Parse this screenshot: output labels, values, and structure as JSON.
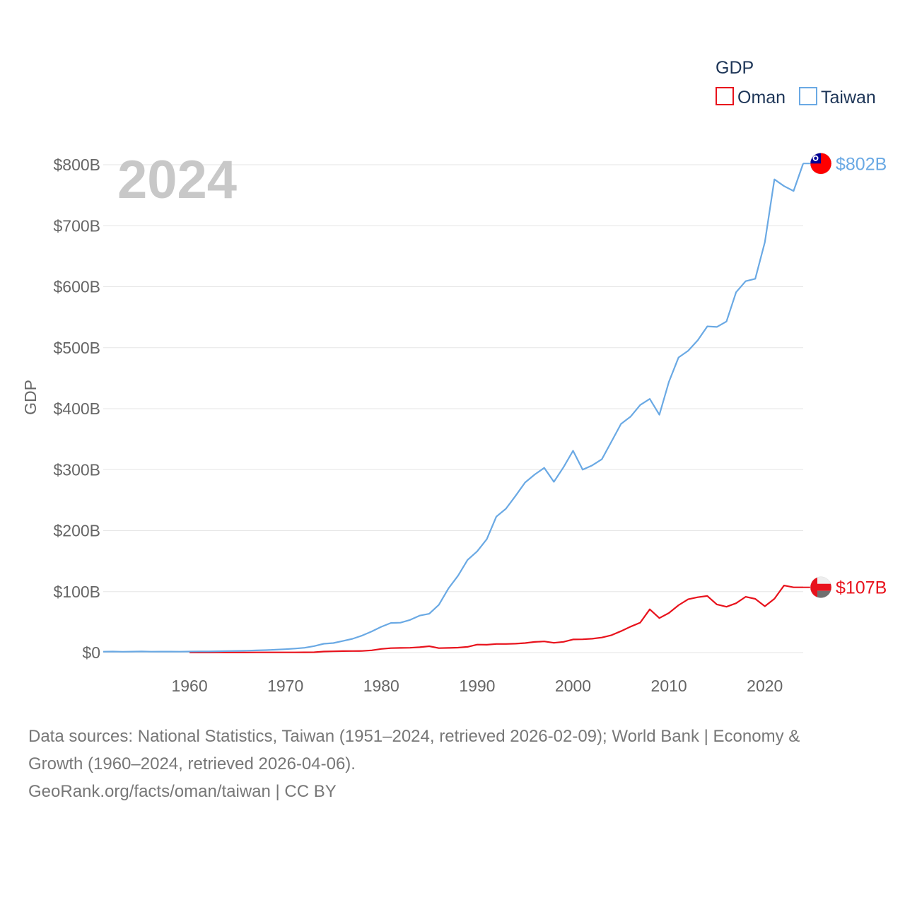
{
  "chart_data": {
    "type": "line",
    "title": "",
    "year_label": "2024",
    "ylabel": "GDP",
    "xlabel": "",
    "xlim": [
      1951,
      2024
    ],
    "ylim": [
      0,
      800
    ],
    "y_ticks": [
      {
        "value": 0,
        "label": "$0"
      },
      {
        "value": 100,
        "label": "$100B"
      },
      {
        "value": 200,
        "label": "$200B"
      },
      {
        "value": 300,
        "label": "$300B"
      },
      {
        "value": 400,
        "label": "$400B"
      },
      {
        "value": 500,
        "label": "$500B"
      },
      {
        "value": 600,
        "label": "$600B"
      },
      {
        "value": 700,
        "label": "$700B"
      },
      {
        "value": 800,
        "label": "$800B"
      }
    ],
    "x_ticks": [
      {
        "value": 1960,
        "label": "1960"
      },
      {
        "value": 1970,
        "label": "1970"
      },
      {
        "value": 1980,
        "label": "1980"
      },
      {
        "value": 1990,
        "label": "1990"
      },
      {
        "value": 2000,
        "label": "2000"
      },
      {
        "value": 2010,
        "label": "2010"
      },
      {
        "value": 2020,
        "label": "2020"
      }
    ],
    "legend": {
      "title": "GDP",
      "position": "top-right"
    },
    "series": [
      {
        "name": "Oman",
        "color": "#e8121c",
        "end_label": "$107B",
        "flag": "oman-flag",
        "x": [
          1960,
          1961,
          1962,
          1963,
          1964,
          1965,
          1966,
          1967,
          1968,
          1969,
          1970,
          1971,
          1972,
          1973,
          1974,
          1975,
          1976,
          1977,
          1978,
          1979,
          1980,
          1981,
          1982,
          1983,
          1984,
          1985,
          1986,
          1987,
          1988,
          1989,
          1990,
          1991,
          1992,
          1993,
          1994,
          1995,
          1996,
          1997,
          1998,
          1999,
          2000,
          2001,
          2002,
          2003,
          2004,
          2005,
          2006,
          2007,
          2008,
          2009,
          2010,
          2011,
          2012,
          2013,
          2014,
          2015,
          2016,
          2017,
          2018,
          2019,
          2020,
          2021,
          2022,
          2023,
          2024
        ],
        "values": [
          0.1,
          0.1,
          0.1,
          0.2,
          0.2,
          0.2,
          0.2,
          0.3,
          0.3,
          0.3,
          0.3,
          0.4,
          0.5,
          0.6,
          1.7,
          2.1,
          2.4,
          2.6,
          2.7,
          3.7,
          6.0,
          7.3,
          7.6,
          7.9,
          8.8,
          10.4,
          7.3,
          7.7,
          8.1,
          9.4,
          13.1,
          12.9,
          14.2,
          14.2,
          14.6,
          15.6,
          17.5,
          18.3,
          16.0,
          17.6,
          21.6,
          21.8,
          22.7,
          24.7,
          28.5,
          35.1,
          42.6,
          49.2,
          71.0,
          56.6,
          64.9,
          77.7,
          87.4,
          90.8,
          92.9,
          78.9,
          75.1,
          80.9,
          91.5,
          88.1,
          75.9,
          88.2,
          110.0,
          107.0,
          107.0
        ]
      },
      {
        "name": "Taiwan",
        "color": "#6aa9e4",
        "end_label": "$802B",
        "flag": "taiwan-flag",
        "x": [
          1951,
          1952,
          1953,
          1954,
          1955,
          1956,
          1957,
          1958,
          1959,
          1960,
          1961,
          1962,
          1963,
          1964,
          1965,
          1966,
          1967,
          1968,
          1969,
          1970,
          1971,
          1972,
          1973,
          1974,
          1975,
          1976,
          1977,
          1978,
          1979,
          1980,
          1981,
          1982,
          1983,
          1984,
          1985,
          1986,
          1987,
          1988,
          1989,
          1990,
          1991,
          1992,
          1993,
          1994,
          1995,
          1996,
          1997,
          1998,
          1999,
          2000,
          2001,
          2002,
          2003,
          2004,
          2005,
          2006,
          2007,
          2008,
          2009,
          2010,
          2011,
          2012,
          2013,
          2014,
          2015,
          2016,
          2017,
          2018,
          2019,
          2020,
          2021,
          2022,
          2023,
          2024
        ],
        "values": [
          1.5,
          1.7,
          1.4,
          1.6,
          1.8,
          1.5,
          1.6,
          1.6,
          1.5,
          1.7,
          1.8,
          1.9,
          2.2,
          2.5,
          2.8,
          3.1,
          3.6,
          4.1,
          4.7,
          5.6,
          6.6,
          7.9,
          10.7,
          14.5,
          15.7,
          19.0,
          22.6,
          27.9,
          34.7,
          42.3,
          48.6,
          49.1,
          53.6,
          60.6,
          63.6,
          78.4,
          105.0,
          126.0,
          152.0,
          166.0,
          186.0,
          223.0,
          236.0,
          257.0,
          279.0,
          292.0,
          303.0,
          280.0,
          304.0,
          331.0,
          300.0,
          307.0,
          317.0,
          346.0,
          375.0,
          387.0,
          406.0,
          416.0,
          390.0,
          444.0,
          484.0,
          495.0,
          512.0,
          535.0,
          534.0,
          543.0,
          591.0,
          609.0,
          613.0,
          673.0,
          776.0,
          765.0,
          757.0,
          802.0
        ]
      }
    ]
  },
  "source_lines": [
    "Data sources: National Statistics, Taiwan (1951–2024, retrieved 2026-02-09); World Bank | Economy &",
    "Growth (1960–2024, retrieved 2026-04-06).",
    "GeoRank.org/facts/oman/taiwan | CC BY"
  ]
}
